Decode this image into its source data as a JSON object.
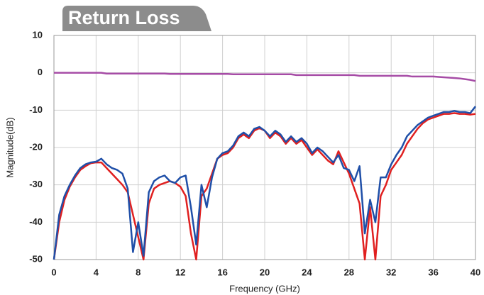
{
  "chart_data": {
    "type": "line",
    "title": "Return Loss",
    "xlabel": "Frequency (GHz)",
    "ylabel": "Magnitude(dB)",
    "x": [
      0,
      0.5,
      1,
      1.5,
      2,
      2.5,
      3,
      3.5,
      4,
      4.5,
      5,
      5.5,
      6,
      6.5,
      7,
      7.5,
      8,
      8.5,
      9,
      9.5,
      10,
      10.5,
      11,
      11.5,
      12,
      12.5,
      13,
      13.5,
      14,
      14.5,
      15,
      15.5,
      16,
      16.5,
      17,
      17.5,
      18,
      18.5,
      19,
      19.5,
      20,
      20.5,
      21,
      21.5,
      22,
      22.5,
      23,
      23.5,
      24,
      24.5,
      25,
      25.5,
      26,
      26.5,
      27,
      27.5,
      28,
      28.5,
      29,
      29.5,
      30,
      30.5,
      31,
      31.5,
      32,
      32.5,
      33,
      33.5,
      34,
      34.5,
      35,
      35.5,
      36,
      36.5,
      37,
      37.5,
      38,
      38.5,
      39,
      39.5,
      40
    ],
    "series": [
      {
        "color": "#a64ca6",
        "values": [
          0,
          0,
          0,
          0,
          0,
          0,
          0,
          0,
          0,
          0,
          -0.2,
          -0.2,
          -0.2,
          -0.2,
          -0.2,
          -0.2,
          -0.2,
          -0.2,
          -0.2,
          -0.2,
          -0.2,
          -0.2,
          -0.3,
          -0.3,
          -0.3,
          -0.3,
          -0.3,
          -0.3,
          -0.3,
          -0.3,
          -0.3,
          -0.3,
          -0.3,
          -0.3,
          -0.4,
          -0.4,
          -0.4,
          -0.4,
          -0.4,
          -0.4,
          -0.4,
          -0.4,
          -0.4,
          -0.4,
          -0.4,
          -0.4,
          -0.6,
          -0.6,
          -0.6,
          -0.6,
          -0.6,
          -0.6,
          -0.6,
          -0.6,
          -0.6,
          -0.6,
          -0.6,
          -0.6,
          -0.8,
          -0.8,
          -0.8,
          -0.8,
          -0.8,
          -0.8,
          -0.8,
          -0.8,
          -0.8,
          -0.8,
          -1,
          -1,
          -1,
          -1,
          -1,
          -1.1,
          -1.2,
          -1.3,
          -1.4,
          -1.5,
          -1.7,
          -1.9,
          -2.2
        ]
      },
      {
        "color": "#e02020",
        "values": [
          -50,
          -40,
          -34,
          -30.5,
          -28,
          -26,
          -25,
          -24.2,
          -24,
          -24,
          -25.5,
          -27,
          -28.5,
          -30,
          -32,
          -38,
          -44,
          -50,
          -35,
          -31,
          -30,
          -29.5,
          -29,
          -29.5,
          -30.5,
          -33,
          -43,
          -50,
          -33,
          -31,
          -27,
          -23,
          -22,
          -21.5,
          -20,
          -17.5,
          -16.5,
          -17.5,
          -15.5,
          -14.8,
          -15.5,
          -17.5,
          -16,
          -17,
          -19,
          -17.5,
          -19,
          -18,
          -20,
          -22,
          -20.5,
          -22,
          -23.5,
          -24.5,
          -21,
          -24,
          -27,
          -31,
          -35,
          -50,
          -36,
          -50,
          -33,
          -30,
          -26,
          -24,
          -22,
          -19,
          -17,
          -15,
          -13.5,
          -12.5,
          -12,
          -11.5,
          -11,
          -11,
          -10.8,
          -11,
          -11,
          -11.2,
          -11
        ]
      },
      {
        "color": "#1f4fa8",
        "values": [
          -50,
          -38,
          -33,
          -30,
          -27.5,
          -25.5,
          -24.5,
          -24,
          -23.8,
          -23,
          -24.5,
          -25.5,
          -26,
          -27,
          -31,
          -48,
          -40,
          -49,
          -32,
          -29,
          -28,
          -27.5,
          -29,
          -29.5,
          -28,
          -27.5,
          -36,
          -46,
          -30,
          -36,
          -28,
          -23,
          -21.5,
          -21,
          -19.5,
          -17,
          -16,
          -17,
          -15,
          -14.5,
          -15.5,
          -17,
          -15.5,
          -16.5,
          -18.5,
          -17,
          -18.5,
          -17.5,
          -19,
          -21.5,
          -20,
          -21,
          -22.5,
          -24,
          -22,
          -25.5,
          -26,
          -29,
          -25,
          -43,
          -34,
          -40,
          -28,
          -28,
          -24.5,
          -22,
          -20,
          -17,
          -15.5,
          -14,
          -13,
          -12,
          -11.5,
          -11,
          -10.5,
          -10.5,
          -10.2,
          -10.5,
          -10.5,
          -10.8,
          -9
        ]
      }
    ],
    "xlim": [
      0,
      40
    ],
    "xticks": [
      0,
      4,
      8,
      12,
      16,
      20,
      24,
      28,
      32,
      36,
      40
    ],
    "ylim": [
      -50,
      10
    ],
    "yticks": [
      10,
      0,
      -10,
      -20,
      -30,
      -40,
      -50
    ],
    "grid": true
  }
}
